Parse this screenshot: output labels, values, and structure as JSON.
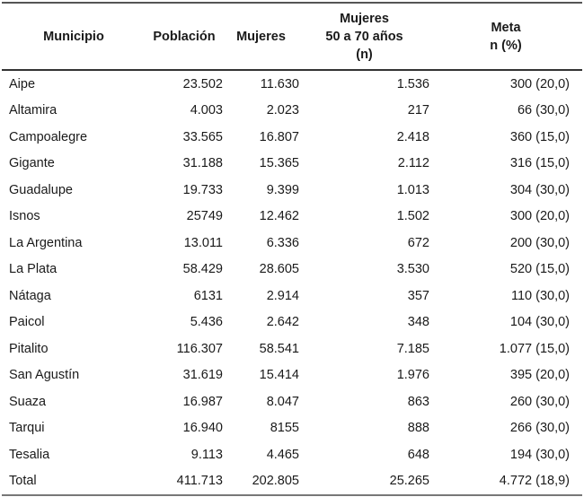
{
  "table": {
    "headers": [
      {
        "lines": [
          "Municipio"
        ]
      },
      {
        "lines": [
          "Población"
        ]
      },
      {
        "lines": [
          "Mujeres"
        ]
      },
      {
        "lines": [
          "Mujeres",
          "50 a 70 años",
          "(n)"
        ]
      },
      {
        "lines": [
          "Meta",
          "n (%)"
        ]
      }
    ],
    "rows": [
      [
        "Aipe",
        "23.502",
        "11.630",
        "1.536",
        "300 (20,0)"
      ],
      [
        "Altamira",
        "4.003",
        "2.023",
        "217",
        "66 (30,0)"
      ],
      [
        "Campoalegre",
        "33.565",
        "16.807",
        "2.418",
        "360 (15,0)"
      ],
      [
        "Gigante",
        "31.188",
        "15.365",
        "2.112",
        "316 (15,0)"
      ],
      [
        "Guadalupe",
        "19.733",
        "9.399",
        "1.013",
        "304 (30,0)"
      ],
      [
        "Isnos",
        "25749",
        "12.462",
        "1.502",
        "300 (20,0)"
      ],
      [
        "La Argentina",
        "13.011",
        "6.336",
        "672",
        "200 (30,0)"
      ],
      [
        "La Plata",
        "58.429",
        "28.605",
        "3.530",
        "520 (15,0)"
      ],
      [
        "Nátaga",
        "6131",
        "2.914",
        "357",
        "110 (30,0)"
      ],
      [
        "Paicol",
        "5.436",
        "2.642",
        "348",
        "104 (30,0)"
      ],
      [
        "Pitalito",
        "116.307",
        "58.541",
        "7.185",
        "1.077 (15,0)"
      ],
      [
        "San Agustín",
        "31.619",
        "15.414",
        "1.976",
        "395 (20,0)"
      ],
      [
        "Suaza",
        "16.987",
        "8.047",
        "863",
        "260 (30,0)"
      ],
      [
        "Tarqui",
        "16.940",
        "8155",
        "888",
        "266 (30,0)"
      ],
      [
        "Tesalia",
        "9.113",
        "4.465",
        "648",
        "194 (30,0)"
      ],
      [
        "Total",
        "411.713",
        "202.805",
        "25.265",
        "4.772 (18,9)"
      ]
    ]
  }
}
